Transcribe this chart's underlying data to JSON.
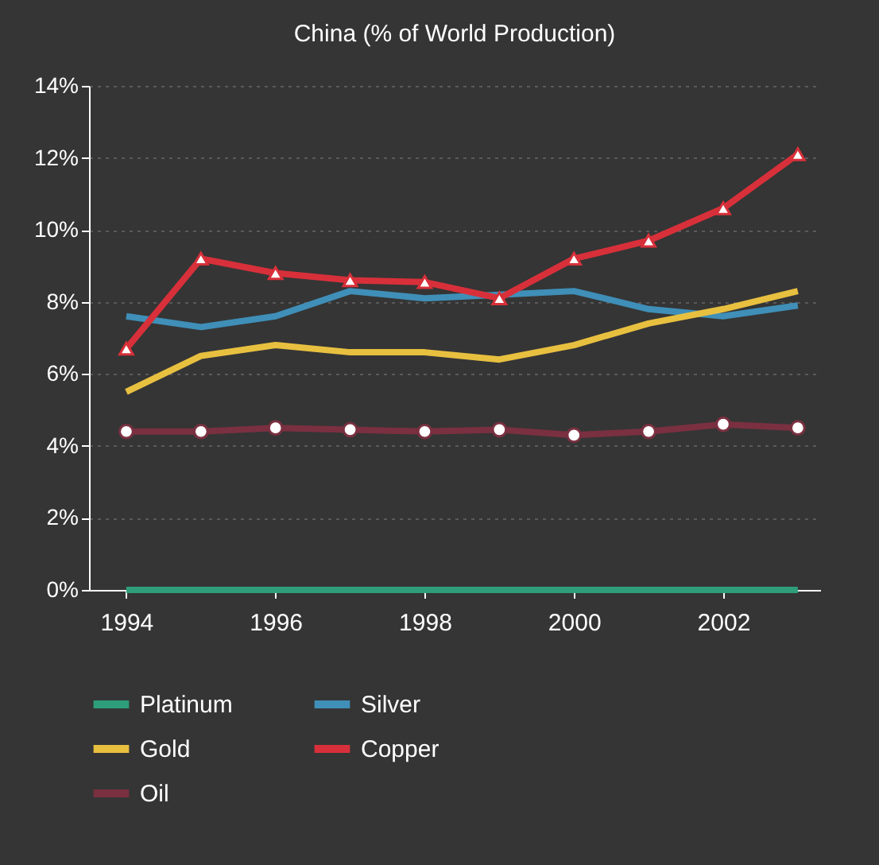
{
  "chart_data": {
    "type": "line",
    "title": "China (% of World Production)",
    "x": [
      1994,
      1995,
      1996,
      1997,
      1998,
      1999,
      2000,
      2001,
      2002,
      2003
    ],
    "series": [
      {
        "name": "Platinum",
        "color": "#2e9e7a",
        "values": [
          0,
          0,
          0,
          0,
          0,
          0,
          0,
          0,
          0,
          0
        ]
      },
      {
        "name": "Silver",
        "color": "#3f8fb8",
        "values": [
          7.6,
          7.3,
          7.6,
          8.3,
          8.1,
          8.2,
          8.3,
          7.8,
          7.6,
          7.9
        ]
      },
      {
        "name": "Gold",
        "color": "#e8c040",
        "values": [
          5.5,
          6.5,
          6.8,
          6.6,
          6.6,
          6.4,
          6.8,
          7.4,
          7.8,
          8.3
        ]
      },
      {
        "name": "Copper",
        "color": "#d8303a",
        "marker": "triangle",
        "values": [
          6.7,
          9.2,
          8.8,
          8.6,
          8.55,
          8.1,
          9.2,
          9.7,
          10.6,
          12.1
        ]
      },
      {
        "name": "Oil",
        "color": "#7a3040",
        "marker": "circle",
        "values": [
          4.4,
          4.4,
          4.5,
          4.45,
          4.4,
          4.45,
          4.3,
          4.4,
          4.6,
          4.5
        ]
      }
    ],
    "xlim": [
      1993.5,
      2003.3
    ],
    "xticks": [
      1994,
      1996,
      1998,
      2000,
      2002
    ],
    "ylim": [
      0,
      14
    ],
    "yticks": [
      {
        "value": 0,
        "label": "0%"
      },
      {
        "value": 2,
        "label": "2%"
      },
      {
        "value": 4,
        "label": "4%"
      },
      {
        "value": 6,
        "label": "6%"
      },
      {
        "value": 8,
        "label": "8%"
      },
      {
        "value": 10,
        "label": "10%"
      },
      {
        "value": 12,
        "label": "12%"
      },
      {
        "value": 14,
        "label": "14%"
      }
    ],
    "grid": "y",
    "legend": "bottom"
  }
}
